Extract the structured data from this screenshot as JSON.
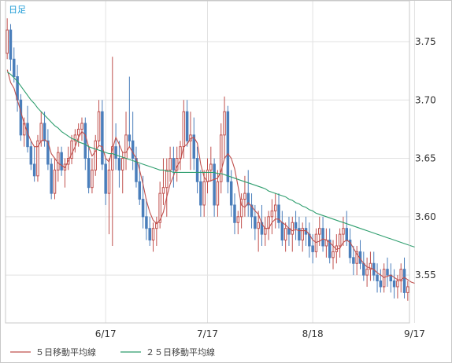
{
  "period_label": "日足",
  "legend": {
    "ma5_label": "５日移動平均線",
    "ma25_label": "２５日移動平均線"
  },
  "colors": {
    "up": "#c0504d",
    "down": "#4a7ebb",
    "ma5": "#c0504d",
    "ma25": "#2e9e6e",
    "grid": "#e2e2e2",
    "frame": "#c8c8c8"
  },
  "chart_data": {
    "type": "candlestick",
    "title": "",
    "xlabel": "",
    "ylabel": "",
    "ylim": [
      3.509,
      3.785
    ],
    "y_ticks": [
      3.55,
      3.6,
      3.65,
      3.7,
      3.75
    ],
    "y_tick_labels": [
      "3.55",
      "3.60",
      "3.65",
      "3.70",
      "3.75"
    ],
    "x_ticks": [
      {
        "label": "6/17",
        "index": 29
      },
      {
        "label": "7/17",
        "index": 59
      },
      {
        "label": "8/18",
        "index": 90
      },
      {
        "label": "9/17",
        "index": 120
      }
    ],
    "grid": true,
    "legend_position": "bottom-left",
    "candles": [
      [
        3.74,
        3.77,
        3.735,
        3.76
      ],
      [
        3.76,
        3.765,
        3.725,
        3.735
      ],
      [
        3.735,
        3.745,
        3.715,
        3.72
      ],
      [
        3.72,
        3.73,
        3.69,
        3.7
      ],
      [
        3.7,
        3.705,
        3.665,
        3.67
      ],
      [
        3.67,
        3.685,
        3.66,
        3.68
      ],
      [
        3.68,
        3.695,
        3.655,
        3.66
      ],
      [
        3.66,
        3.665,
        3.64,
        3.645
      ],
      [
        3.645,
        3.66,
        3.63,
        3.635
      ],
      [
        3.635,
        3.67,
        3.63,
        3.665
      ],
      [
        3.665,
        3.69,
        3.66,
        3.68
      ],
      [
        3.68,
        3.69,
        3.66,
        3.665
      ],
      [
        3.665,
        3.675,
        3.64,
        3.645
      ],
      [
        3.645,
        3.65,
        3.615,
        3.62
      ],
      [
        3.62,
        3.65,
        3.615,
        3.64
      ],
      [
        3.64,
        3.66,
        3.63,
        3.655
      ],
      [
        3.655,
        3.66,
        3.635,
        3.64
      ],
      [
        3.64,
        3.65,
        3.625,
        3.645
      ],
      [
        3.645,
        3.66,
        3.64,
        3.65
      ],
      [
        3.65,
        3.67,
        3.645,
        3.665
      ],
      [
        3.665,
        3.675,
        3.655,
        3.67
      ],
      [
        3.67,
        3.68,
        3.66,
        3.675
      ],
      [
        3.675,
        3.685,
        3.665,
        3.68
      ],
      [
        3.68,
        3.685,
        3.64,
        3.65
      ],
      [
        3.65,
        3.66,
        3.62,
        3.625
      ],
      [
        3.625,
        3.65,
        3.62,
        3.64
      ],
      [
        3.64,
        3.67,
        3.635,
        3.665
      ],
      [
        3.665,
        3.7,
        3.66,
        3.69
      ],
      [
        3.69,
        3.7,
        3.64,
        3.645
      ],
      [
        3.645,
        3.65,
        3.61,
        3.62
      ],
      [
        3.62,
        3.65,
        3.585,
        3.64
      ],
      [
        3.64,
        3.737,
        3.575,
        3.66
      ],
      [
        3.66,
        3.68,
        3.64,
        3.65
      ],
      [
        3.65,
        3.665,
        3.625,
        3.64
      ],
      [
        3.64,
        3.655,
        3.62,
        3.65
      ],
      [
        3.65,
        3.69,
        3.64,
        3.67
      ],
      [
        3.67,
        3.72,
        3.66,
        3.665
      ],
      [
        3.665,
        3.69,
        3.64,
        3.65
      ],
      [
        3.65,
        3.66,
        3.625,
        3.63
      ],
      [
        3.63,
        3.645,
        3.61,
        3.615
      ],
      [
        3.615,
        3.635,
        3.59,
        3.6
      ],
      [
        3.6,
        3.615,
        3.58,
        3.59
      ],
      [
        3.59,
        3.6,
        3.575,
        3.58
      ],
      [
        3.58,
        3.595,
        3.57,
        3.59
      ],
      [
        3.59,
        3.6,
        3.575,
        3.595
      ],
      [
        3.595,
        3.63,
        3.59,
        3.62
      ],
      [
        3.62,
        3.65,
        3.61,
        3.625
      ],
      [
        3.625,
        3.65,
        3.6,
        3.64
      ],
      [
        3.64,
        3.66,
        3.63,
        3.65
      ],
      [
        3.65,
        3.66,
        3.625,
        3.64
      ],
      [
        3.64,
        3.66,
        3.63,
        3.65
      ],
      [
        3.65,
        3.665,
        3.64,
        3.66
      ],
      [
        3.66,
        3.7,
        3.65,
        3.69
      ],
      [
        3.69,
        3.7,
        3.66,
        3.665
      ],
      [
        3.665,
        3.69,
        3.64,
        3.67
      ],
      [
        3.67,
        3.685,
        3.64,
        3.65
      ],
      [
        3.65,
        3.66,
        3.62,
        3.63
      ],
      [
        3.63,
        3.64,
        3.6,
        3.61
      ],
      [
        3.61,
        3.64,
        3.6,
        3.63
      ],
      [
        3.63,
        3.65,
        3.62,
        3.64
      ],
      [
        3.64,
        3.66,
        3.63,
        3.645
      ],
      [
        3.645,
        3.65,
        3.6,
        3.61
      ],
      [
        3.61,
        3.64,
        3.6,
        3.63
      ],
      [
        3.63,
        3.68,
        3.62,
        3.67
      ],
      [
        3.67,
        3.703,
        3.65,
        3.69
      ],
      [
        3.69,
        3.695,
        3.62,
        3.63
      ],
      [
        3.63,
        3.64,
        3.6,
        3.61
      ],
      [
        3.61,
        3.62,
        3.585,
        3.595
      ],
      [
        3.595,
        3.605,
        3.585,
        3.6
      ],
      [
        3.6,
        3.62,
        3.59,
        3.615
      ],
      [
        3.615,
        3.635,
        3.6,
        3.62
      ],
      [
        3.62,
        3.64,
        3.6,
        3.61
      ],
      [
        3.61,
        3.62,
        3.59,
        3.6
      ],
      [
        3.6,
        3.61,
        3.58,
        3.59
      ],
      [
        3.59,
        3.605,
        3.57,
        3.595
      ],
      [
        3.595,
        3.61,
        3.575,
        3.585
      ],
      [
        3.585,
        3.6,
        3.575,
        3.59
      ],
      [
        3.59,
        3.605,
        3.58,
        3.6
      ],
      [
        3.6,
        3.615,
        3.585,
        3.605
      ],
      [
        3.605,
        3.62,
        3.59,
        3.61
      ],
      [
        3.61,
        3.62,
        3.59,
        3.595
      ],
      [
        3.595,
        3.605,
        3.575,
        3.58
      ],
      [
        3.58,
        3.595,
        3.57,
        3.59
      ],
      [
        3.59,
        3.6,
        3.575,
        3.585
      ],
      [
        3.585,
        3.6,
        3.57,
        3.595
      ],
      [
        3.595,
        3.605,
        3.58,
        3.59
      ],
      [
        3.59,
        3.6,
        3.575,
        3.58
      ],
      [
        3.58,
        3.595,
        3.57,
        3.59
      ],
      [
        3.59,
        3.6,
        3.575,
        3.585
      ],
      [
        3.585,
        3.595,
        3.565,
        3.575
      ],
      [
        3.575,
        3.585,
        3.56,
        3.57
      ],
      [
        3.57,
        3.59,
        3.565,
        3.585
      ],
      [
        3.585,
        3.6,
        3.575,
        3.59
      ],
      [
        3.59,
        3.6,
        3.57,
        3.575
      ],
      [
        3.575,
        3.59,
        3.565,
        3.58
      ],
      [
        3.58,
        3.59,
        3.56,
        3.565
      ],
      [
        3.565,
        3.58,
        3.555,
        3.57
      ],
      [
        3.57,
        3.585,
        3.56,
        3.575
      ],
      [
        3.575,
        3.59,
        3.565,
        3.585
      ],
      [
        3.585,
        3.6,
        3.575,
        3.59
      ],
      [
        3.59,
        3.605,
        3.575,
        3.58
      ],
      [
        3.58,
        3.59,
        3.56,
        3.565
      ],
      [
        3.565,
        3.575,
        3.55,
        3.56
      ],
      [
        3.56,
        3.575,
        3.55,
        3.57
      ],
      [
        3.57,
        3.58,
        3.555,
        3.56
      ],
      [
        3.56,
        3.57,
        3.545,
        3.55
      ],
      [
        3.55,
        3.565,
        3.54,
        3.555
      ],
      [
        3.555,
        3.57,
        3.545,
        3.56
      ],
      [
        3.56,
        3.57,
        3.545,
        3.55
      ],
      [
        3.55,
        3.56,
        3.535,
        3.545
      ],
      [
        3.545,
        3.555,
        3.535,
        3.54
      ],
      [
        3.54,
        3.56,
        3.535,
        3.555
      ],
      [
        3.555,
        3.565,
        3.54,
        3.55
      ],
      [
        3.55,
        3.56,
        3.535,
        3.545
      ],
      [
        3.545,
        3.555,
        3.53,
        3.54
      ],
      [
        3.54,
        3.55,
        3.53,
        3.545
      ],
      [
        3.545,
        3.56,
        3.535,
        3.555
      ],
      [
        3.555,
        3.565,
        3.53,
        3.535
      ],
      [
        3.535,
        3.545,
        3.528,
        3.54
      ]
    ],
    "series": [
      {
        "name": "５日移動平均線",
        "values": [
          3.726,
          3.715,
          3.71,
          3.7,
          3.69,
          3.68,
          3.672,
          3.665,
          3.66,
          3.66,
          3.665,
          3.666,
          3.664,
          3.654,
          3.65,
          3.646,
          3.644,
          3.642,
          3.648,
          3.654,
          3.66,
          3.668,
          3.673,
          3.67,
          3.66,
          3.652,
          3.656,
          3.661,
          3.66,
          3.65,
          3.647,
          3.658,
          3.668,
          3.662,
          3.655,
          3.655,
          3.66,
          3.655,
          3.65,
          3.64,
          3.628,
          3.614,
          3.604,
          3.597,
          3.594,
          3.597,
          3.604,
          3.617,
          3.628,
          3.635,
          3.643,
          3.648,
          3.66,
          3.662,
          3.667,
          3.668,
          3.663,
          3.645,
          3.634,
          3.63,
          3.631,
          3.632,
          3.633,
          3.639,
          3.65,
          3.654,
          3.65,
          3.641,
          3.626,
          3.61,
          3.608,
          3.612,
          3.609,
          3.605,
          3.602,
          3.594,
          3.59,
          3.59,
          3.595,
          3.598,
          3.598,
          3.595,
          3.593,
          3.59,
          3.588,
          3.589,
          3.588,
          3.588,
          3.588,
          3.585,
          3.58,
          3.578,
          3.579,
          3.581,
          3.58,
          3.578,
          3.575,
          3.572,
          3.573,
          3.578,
          3.58,
          3.578,
          3.573,
          3.568,
          3.564,
          3.56,
          3.557,
          3.556,
          3.555,
          3.552,
          3.55,
          3.548,
          3.549,
          3.55,
          3.548,
          3.546,
          3.546,
          3.548,
          3.546,
          3.544,
          3.543
        ]
      },
      {
        "name": "２５日移動平均線",
        "values": [
          3.724,
          3.722,
          3.719,
          3.716,
          3.712,
          3.708,
          3.704,
          3.7,
          3.697,
          3.693,
          3.69,
          3.687,
          3.684,
          3.681,
          3.678,
          3.676,
          3.673,
          3.671,
          3.669,
          3.667,
          3.666,
          3.664,
          3.663,
          3.662,
          3.66,
          3.659,
          3.658,
          3.657,
          3.656,
          3.655,
          3.654,
          3.654,
          3.653,
          3.652,
          3.651,
          3.65,
          3.649,
          3.648,
          3.647,
          3.646,
          3.645,
          3.644,
          3.643,
          3.642,
          3.641,
          3.64,
          3.64,
          3.639,
          3.639,
          3.638,
          3.638,
          3.638,
          3.638,
          3.638,
          3.638,
          3.638,
          3.638,
          3.638,
          3.638,
          3.638,
          3.638,
          3.638,
          3.637,
          3.637,
          3.636,
          3.635,
          3.634,
          3.633,
          3.632,
          3.631,
          3.63,
          3.629,
          3.628,
          3.627,
          3.626,
          3.625,
          3.624,
          3.622,
          3.621,
          3.62,
          3.619,
          3.618,
          3.617,
          3.615,
          3.614,
          3.612,
          3.611,
          3.609,
          3.608,
          3.606,
          3.605,
          3.603,
          3.602,
          3.601,
          3.6,
          3.599,
          3.598,
          3.597,
          3.596,
          3.595,
          3.594,
          3.593,
          3.592,
          3.591,
          3.59,
          3.589,
          3.588,
          3.587,
          3.586,
          3.585,
          3.584,
          3.583,
          3.582,
          3.581,
          3.58,
          3.579,
          3.578,
          3.577,
          3.576,
          3.575,
          3.574
        ]
      }
    ]
  }
}
